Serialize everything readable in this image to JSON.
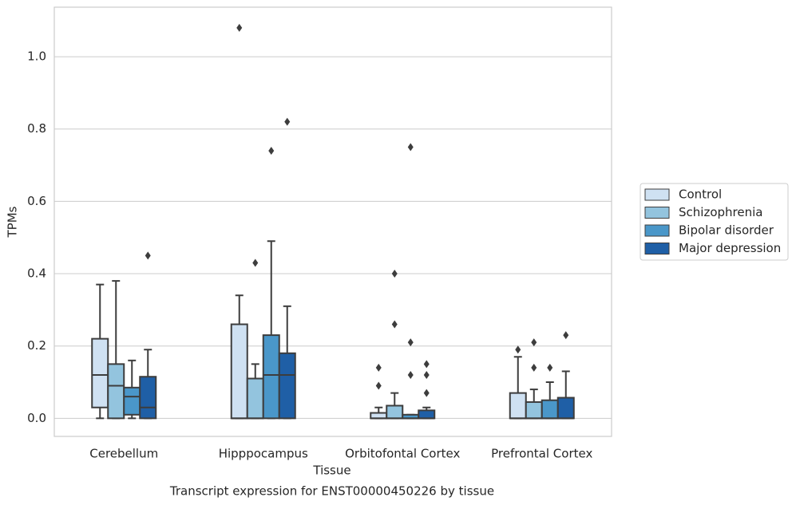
{
  "chart_data": {
    "type": "box",
    "title": "Transcript expression for ENST00000450226 by tissue",
    "x_label": "Tissue",
    "y_label": "TPMs",
    "categories": [
      "Cerebellum",
      "Hipppocampus",
      "Orbitofontal Cortex",
      "Prefrontal Cortex"
    ],
    "ylim": [
      -0.05,
      1.137
    ],
    "yticks": [
      {
        "value": 0,
        "label": "0.0"
      },
      0.2,
      0.4,
      0.6,
      0.8,
      {
        "value": 1,
        "label": "1.0"
      }
    ],
    "grid": true,
    "legend": "center right outside",
    "series": [
      {
        "name": "Control",
        "color": "#cfe1f2",
        "boxes": [
          {
            "whislo": 0,
            "q1": 0.03,
            "med": 0.12,
            "q3": 0.22,
            "whishi": 0.37,
            "fliers": []
          },
          {
            "whislo": 0,
            "q1": 0,
            "med": 0,
            "q3": 0.26,
            "whishi": 0.34,
            "fliers": [
              1.08
            ]
          },
          {
            "whislo": 0,
            "q1": 0,
            "med": 0,
            "q3": 0.015,
            "whishi": 0.03,
            "fliers": [
              0.09,
              0.14
            ]
          },
          {
            "whislo": 0,
            "q1": 0,
            "med": 0,
            "q3": 0.07,
            "whishi": 0.17,
            "fliers": [
              0.19
            ]
          }
        ]
      },
      {
        "name": "Schizophrenia",
        "color": "#93c4de",
        "boxes": [
          {
            "whislo": 0,
            "q1": 0,
            "med": 0.09,
            "q3": 0.15,
            "whishi": 0.38,
            "fliers": []
          },
          {
            "whislo": 0,
            "q1": 0,
            "med": 0,
            "q3": 0.11,
            "whishi": 0.15,
            "fliers": [
              0.43
            ]
          },
          {
            "whislo": 0,
            "q1": 0,
            "med": 0,
            "q3": 0.035,
            "whishi": 0.07,
            "fliers": [
              0.26,
              0.4
            ]
          },
          {
            "whislo": 0,
            "q1": 0,
            "med": 0,
            "q3": 0.045,
            "whishi": 0.08,
            "fliers": [
              0.14,
              0.21
            ]
          }
        ]
      },
      {
        "name": "Bipolar disorder",
        "color": "#4a97c9",
        "boxes": [
          {
            "whislo": 0,
            "q1": 0.01,
            "med": 0.06,
            "q3": 0.085,
            "whishi": 0.16,
            "fliers": []
          },
          {
            "whislo": 0,
            "q1": 0,
            "med": 0.12,
            "q3": 0.23,
            "whishi": 0.49,
            "fliers": [
              0.74
            ]
          },
          {
            "whislo": 0,
            "q1": 0,
            "med": 0,
            "q3": 0.01,
            "whishi": 0.01,
            "fliers": [
              0.12,
              0.21,
              0.75
            ]
          },
          {
            "whislo": 0,
            "q1": 0,
            "med": 0,
            "q3": 0.05,
            "whishi": 0.1,
            "fliers": [
              0.14
            ]
          }
        ]
      },
      {
        "name": "Major depression",
        "color": "#1f5fa6",
        "boxes": [
          {
            "whislo": 0,
            "q1": 0,
            "med": 0.03,
            "q3": 0.115,
            "whishi": 0.19,
            "fliers": [
              0.45
            ]
          },
          {
            "whislo": 0,
            "q1": 0,
            "med": 0.12,
            "q3": 0.18,
            "whishi": 0.31,
            "fliers": [
              0.82
            ]
          },
          {
            "whislo": 0,
            "q1": 0,
            "med": 0,
            "q3": 0.022,
            "whishi": 0.03,
            "fliers": [
              0.07,
              0.12,
              0.15
            ]
          },
          {
            "whislo": 0,
            "q1": 0,
            "med": 0,
            "q3": 0.057,
            "whishi": 0.13,
            "fliers": [
              0.23
            ]
          }
        ]
      }
    ]
  }
}
